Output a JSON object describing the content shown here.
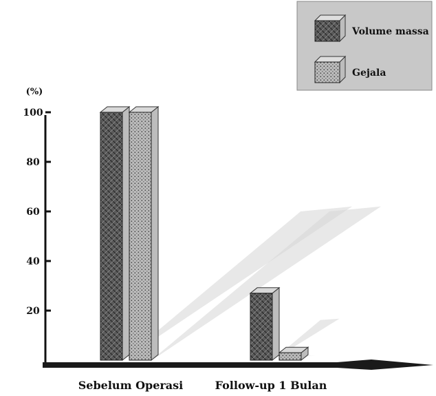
{
  "chart_data": {
    "type": "bar",
    "ylabel": "(%)",
    "categories": [
      "Sebelum Operasi",
      "Follow-up 1 Bulan"
    ],
    "series": [
      {
        "name": "Volume massa",
        "values": [
          100,
          27
        ],
        "pattern": "crosshatch",
        "color": "#5a5a5a"
      },
      {
        "name": "Gejala",
        "values": [
          100,
          3
        ],
        "pattern": "dotted",
        "color": "#b5b5b5"
      }
    ],
    "yticks": [
      20,
      40,
      60,
      80,
      100
    ],
    "ylim": [
      0,
      105
    ],
    "grid": false,
    "legend": {
      "position": "top-right",
      "background": "#c8c8c8"
    },
    "colors": {
      "axis": "#111111",
      "shadow": "#d6d6d6"
    }
  }
}
